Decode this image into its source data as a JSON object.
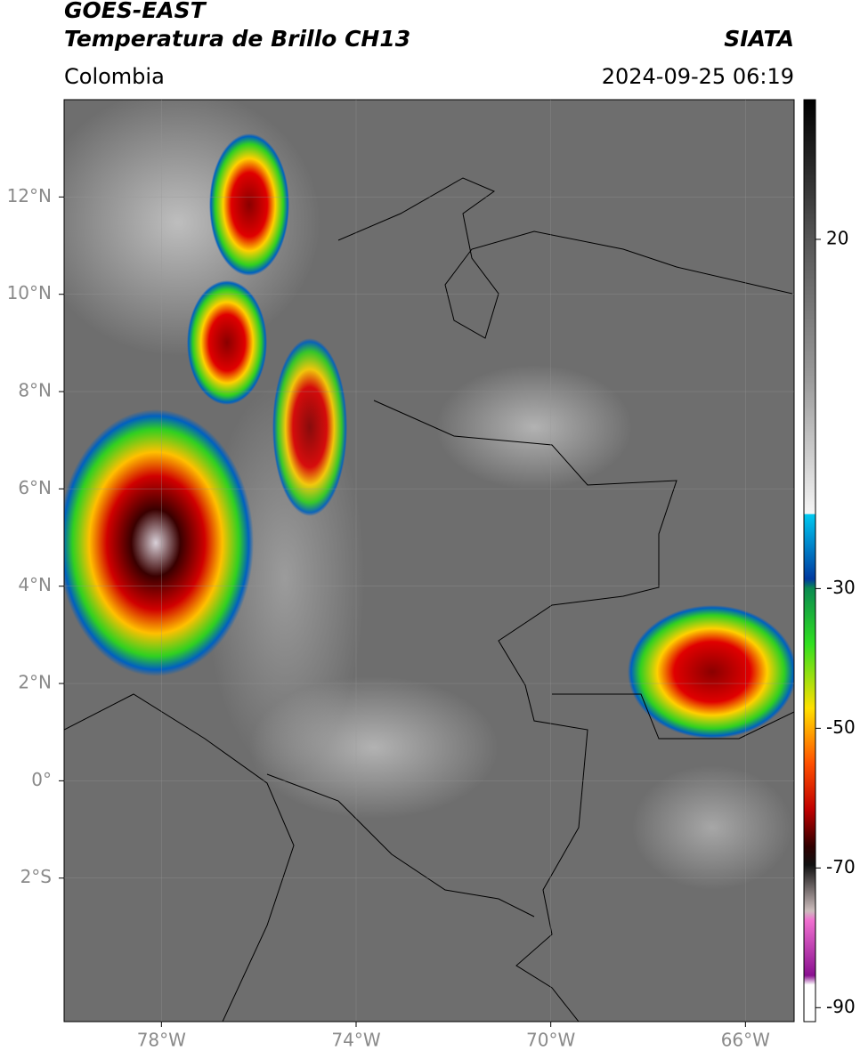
{
  "header": {
    "title_lines": [
      "GOES-EAST",
      "Temperatura de Brillo CH13"
    ],
    "region": "Colombia",
    "source": "SIATA",
    "timestamp": "2024-09-25 06:19"
  },
  "map": {
    "xlim": [
      -80,
      -65
    ],
    "ylim": [
      -4.95,
      14
    ],
    "lon_ticks": [
      {
        "value": -78,
        "label": "78°W"
      },
      {
        "value": -74,
        "label": "74°W"
      },
      {
        "value": -70,
        "label": "70°W"
      },
      {
        "value": -66,
        "label": "66°W"
      }
    ],
    "lat_ticks": [
      {
        "value": 12,
        "label": "12°N"
      },
      {
        "value": 10,
        "label": "10°N"
      },
      {
        "value": 8,
        "label": "8°N"
      },
      {
        "value": 6,
        "label": "6°N"
      },
      {
        "value": 4,
        "label": "4°N"
      },
      {
        "value": 2,
        "label": "2°N"
      },
      {
        "value": 0,
        "label": "0°"
      },
      {
        "value": -2,
        "label": "2°S"
      }
    ],
    "grid": true
  },
  "colorbar": {
    "lim": [
      -92,
      40
    ],
    "ticks": [
      20,
      -30,
      -50,
      -70,
      -90
    ]
  }
}
